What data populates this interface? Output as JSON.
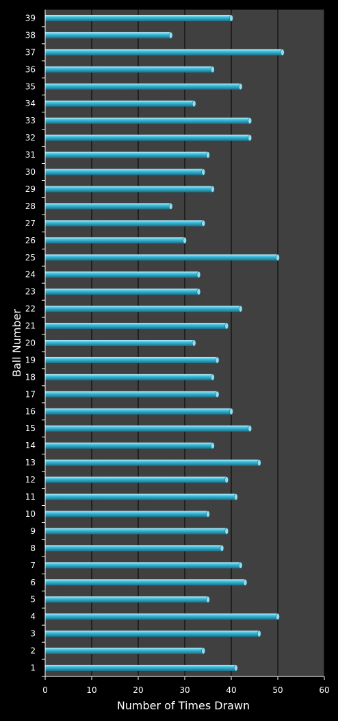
{
  "chart_data": {
    "type": "bar",
    "orientation": "horizontal",
    "xlabel": "Number of Times Drawn",
    "ylabel": "Ball Number",
    "xlim": [
      0,
      60
    ],
    "x_ticks": [
      "0",
      "10",
      "20",
      "30",
      "40",
      "50",
      "60"
    ],
    "grid": "vertical",
    "categories": [
      "1",
      "2",
      "3",
      "4",
      "5",
      "6",
      "7",
      "8",
      "9",
      "10",
      "11",
      "12",
      "13",
      "14",
      "15",
      "16",
      "17",
      "18",
      "19",
      "20",
      "21",
      "22",
      "23",
      "24",
      "25",
      "26",
      "27",
      "28",
      "29",
      "30",
      "31",
      "32",
      "33",
      "34",
      "35",
      "36",
      "37",
      "38",
      "39"
    ],
    "values": [
      41,
      34,
      46,
      50,
      35,
      43,
      42,
      38,
      39,
      35,
      41,
      39,
      46,
      36,
      44,
      40,
      37,
      36,
      37,
      32,
      39,
      42,
      33,
      33,
      50,
      30,
      34,
      27,
      36,
      34,
      35,
      44,
      44,
      32,
      42,
      36,
      51,
      27,
      40
    ],
    "colors": {
      "background": "#000000",
      "plot_area": "#404040",
      "bar": "#3cc0e0",
      "grid": "#000000",
      "text": "#ffffff"
    }
  }
}
